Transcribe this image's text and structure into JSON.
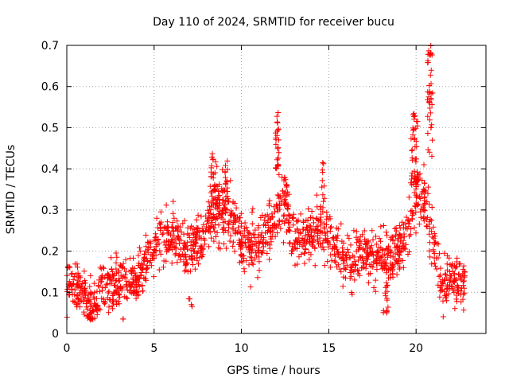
{
  "chart_data": {
    "type": "scatter",
    "title": "Day 110 of 2024, SRMTID for receiver bucu",
    "xlabel": "GPS time / hours",
    "ylabel": "SRMTID / TECUs",
    "xlim": [
      0,
      24
    ],
    "ylim": [
      0,
      0.7
    ],
    "xticks": [
      0,
      5,
      10,
      15,
      20
    ],
    "xtick_labels": [
      "0",
      "5",
      "10",
      "15",
      "20"
    ],
    "yticks": [
      0,
      0.1,
      0.2,
      0.3,
      0.4,
      0.5,
      0.6,
      0.7
    ],
    "ytick_labels": [
      "0",
      "0.1",
      "0.2",
      "0.3",
      "0.4",
      "0.5",
      "0.6",
      "0.7"
    ],
    "grid": true,
    "marker": "plus",
    "series": [
      {
        "name": "SRMTID",
        "color": "#ff0000",
        "trend_profile": [
          [
            0.0,
            0.12
          ],
          [
            0.5,
            0.11
          ],
          [
            1.0,
            0.09
          ],
          [
            1.4,
            0.06
          ],
          [
            2.0,
            0.11
          ],
          [
            3.0,
            0.12
          ],
          [
            4.0,
            0.13
          ],
          [
            4.5,
            0.17
          ],
          [
            5.0,
            0.21
          ],
          [
            5.5,
            0.22
          ],
          [
            6.0,
            0.24
          ],
          [
            7.0,
            0.2
          ],
          [
            8.0,
            0.25
          ],
          [
            8.5,
            0.3
          ],
          [
            9.0,
            0.3
          ],
          [
            9.5,
            0.27
          ],
          [
            10.0,
            0.23
          ],
          [
            10.5,
            0.2
          ],
          [
            11.0,
            0.22
          ],
          [
            11.5,
            0.24
          ],
          [
            12.0,
            0.28
          ],
          [
            12.5,
            0.3
          ],
          [
            13.0,
            0.24
          ],
          [
            13.5,
            0.22
          ],
          [
            14.0,
            0.25
          ],
          [
            14.5,
            0.26
          ],
          [
            15.0,
            0.23
          ],
          [
            15.5,
            0.2
          ],
          [
            16.0,
            0.16
          ],
          [
            16.5,
            0.18
          ],
          [
            17.0,
            0.2
          ],
          [
            17.5,
            0.18
          ],
          [
            18.0,
            0.2
          ],
          [
            18.5,
            0.18
          ],
          [
            19.0,
            0.2
          ],
          [
            19.5,
            0.24
          ],
          [
            20.0,
            0.33
          ],
          [
            20.5,
            0.32
          ],
          [
            21.0,
            0.22
          ],
          [
            21.5,
            0.11
          ],
          [
            22.0,
            0.13
          ],
          [
            22.5,
            0.14
          ],
          [
            22.8,
            0.12
          ]
        ],
        "spread": 0.04,
        "samples": 1650,
        "bursts": [
          {
            "x": [
              8.25,
              8.6
            ],
            "y": [
              0.3,
              0.44
            ],
            "n": 28
          },
          {
            "x": [
              9.0,
              9.2
            ],
            "y": [
              0.3,
              0.43
            ],
            "n": 16
          },
          {
            "x": [
              11.95,
              12.15
            ],
            "y": [
              0.38,
              0.55
            ],
            "n": 28
          },
          {
            "x": [
              12.3,
              12.7
            ],
            "y": [
              0.3,
              0.38
            ],
            "n": 20
          },
          {
            "x": [
              14.6,
              14.75
            ],
            "y": [
              0.28,
              0.42
            ],
            "n": 10
          },
          {
            "x": [
              19.7,
              20.1
            ],
            "y": [
              0.36,
              0.54
            ],
            "n": 45
          },
          {
            "x": [
              20.65,
              20.95
            ],
            "y": [
              0.4,
              0.7
            ],
            "n": 40
          },
          {
            "x": [
              18.1,
              18.4
            ],
            "y": [
              0.05,
              0.12
            ],
            "n": 14
          },
          {
            "x": [
              1.2,
              1.5
            ],
            "y": [
              0.03,
              0.06
            ],
            "n": 10
          },
          {
            "x": [
              6.9,
              7.2
            ],
            "y": [
              0.04,
              0.09
            ],
            "n": 4
          }
        ]
      }
    ]
  }
}
